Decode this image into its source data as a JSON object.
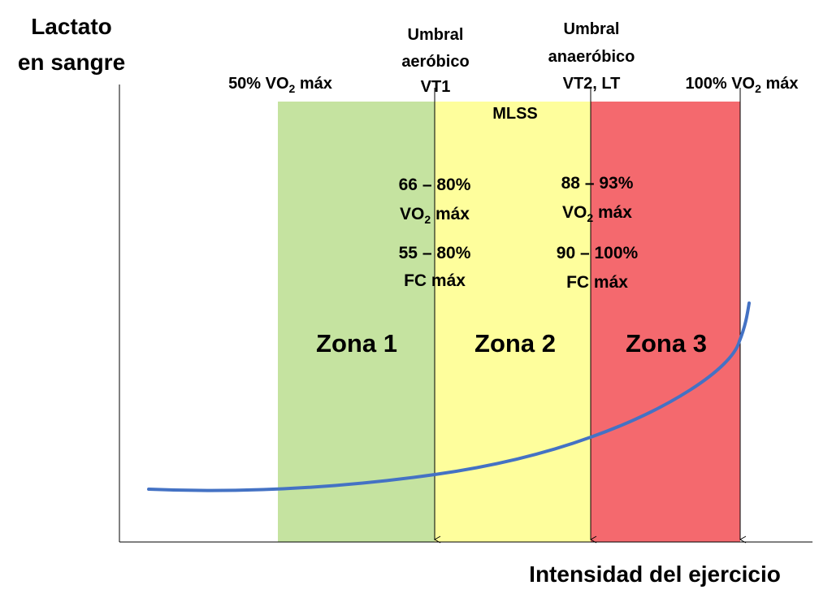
{
  "y_axis_label": {
    "line1": "Lactato",
    "line2": "en sangre"
  },
  "x_axis_label": "Intensidad del ejercicio",
  "markers": {
    "start": {
      "prefix": "50% VO",
      "sub": "2",
      "suffix": " máx"
    },
    "aerobic": {
      "line1": "Umbral",
      "line2": "aeróbico",
      "line3": "VT1"
    },
    "anaerobic": {
      "line1": "Umbral",
      "line2": "anaeróbico",
      "line3": "VT2, LT"
    },
    "end": {
      "prefix": "100% VO",
      "sub": "2",
      "suffix": " máx"
    }
  },
  "mlss": "MLSS",
  "threshold_stats": {
    "vt1": {
      "vo2_range": "66 – 80%",
      "vo2_prefix": "VO",
      "vo2_sub": "2",
      "vo2_suffix": " máx",
      "hr_range": "55 – 80%",
      "hr_label": "FC máx"
    },
    "vt2": {
      "vo2_range": "88 – 93%",
      "vo2_prefix": "VO",
      "vo2_sub": "2",
      "vo2_suffix": " máx",
      "hr_range": "90 – 100%",
      "hr_label": "FC máx"
    }
  },
  "zones": [
    {
      "label": "Zona 1",
      "color": "#c5e3a0"
    },
    {
      "label": "Zona 2",
      "color": "#fefe9c"
    },
    {
      "label": "Zona 3",
      "color": "#f4696e"
    }
  ],
  "curve_color": "#4472c4"
}
